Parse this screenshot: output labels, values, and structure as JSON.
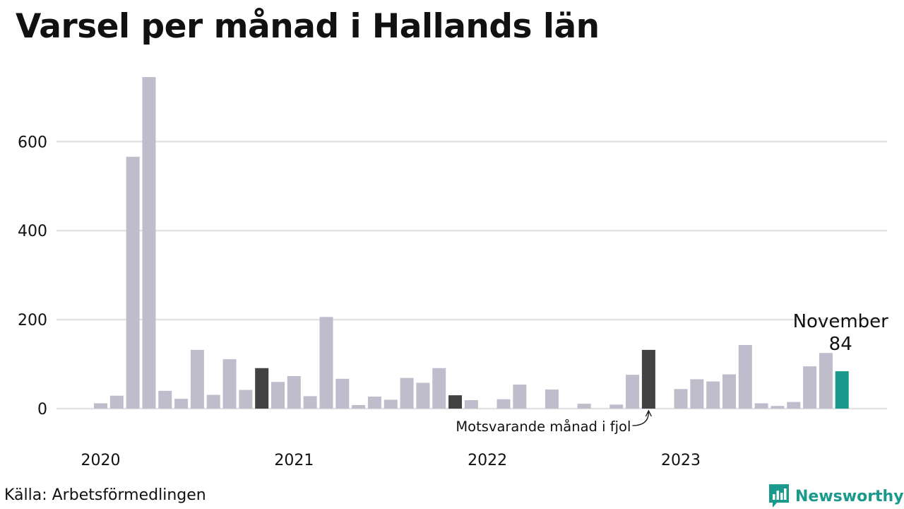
{
  "title": "Varsel per månad i Hallands län",
  "source": "Källa: Arbetsförmedlingen",
  "brand": "Newsworthy",
  "colors": {
    "bar": "#bfbdcc",
    "same_month_prev_year": "#424242",
    "current": "#1a9a8c",
    "grid": "#e3e3e3",
    "brand": "#1a9a8c"
  },
  "chart_data": {
    "type": "bar",
    "title": "Varsel per månad i Hallands län",
    "xlabel": "",
    "ylabel": "",
    "ylim": [
      0,
      760
    ],
    "yticks": [
      0,
      200,
      400,
      600
    ],
    "grid": true,
    "x_ticks": [
      {
        "label": "2020",
        "category": "2020-01"
      },
      {
        "label": "2021",
        "category": "2021-01"
      },
      {
        "label": "2022",
        "category": "2022-01"
      },
      {
        "label": "2023",
        "category": "2023-01"
      }
    ],
    "categories": [
      "2020-01",
      "2020-02",
      "2020-03",
      "2020-04",
      "2020-05",
      "2020-06",
      "2020-07",
      "2020-08",
      "2020-09",
      "2020-10",
      "2020-11",
      "2020-12",
      "2021-01",
      "2021-02",
      "2021-03",
      "2021-04",
      "2021-05",
      "2021-06",
      "2021-07",
      "2021-08",
      "2021-09",
      "2021-10",
      "2021-11",
      "2021-12",
      "2022-01",
      "2022-02",
      "2022-03",
      "2022-04",
      "2022-05",
      "2022-06",
      "2022-07",
      "2022-08",
      "2022-09",
      "2022-10",
      "2022-11",
      "2022-12",
      "2023-01",
      "2023-02",
      "2023-03",
      "2023-04",
      "2023-05",
      "2023-06",
      "2023-07",
      "2023-08",
      "2023-09",
      "2023-10",
      "2023-11"
    ],
    "values": [
      12,
      29,
      566,
      745,
      40,
      22,
      132,
      31,
      111,
      42,
      91,
      60,
      73,
      28,
      206,
      67,
      8,
      27,
      20,
      69,
      58,
      91,
      30,
      19,
      0,
      21,
      54,
      0,
      43,
      0,
      11,
      0,
      9,
      76,
      132,
      0,
      44,
      66,
      61,
      77,
      143,
      12,
      6,
      15,
      95,
      125,
      84
    ],
    "highlight_prev_year": [
      "2020-11",
      "2021-11",
      "2022-11"
    ],
    "highlight_current": "2023-11",
    "annotations": {
      "prev_year": "Motsvarande månad i fjol",
      "current_month": "November",
      "current_value": "84"
    }
  }
}
